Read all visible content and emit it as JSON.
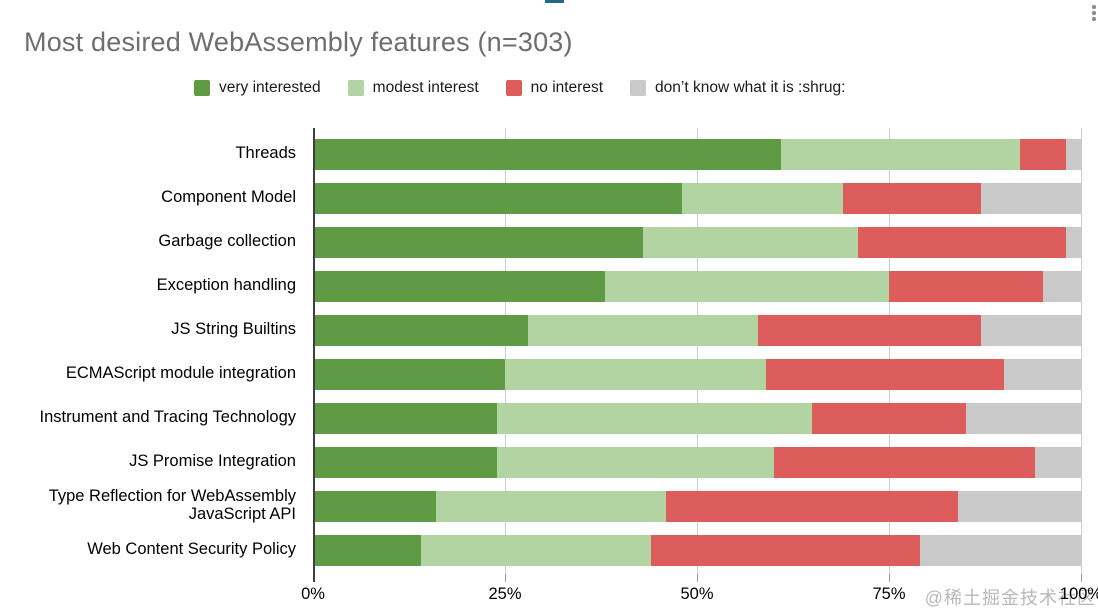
{
  "window": {
    "watermark": "@稀土掘金技术社区",
    "menu_icon": "kebab-vertical-dots"
  },
  "chart_data": {
    "type": "bar",
    "orientation": "horizontal",
    "stacked": true,
    "units": "percent",
    "title": "Most desired WebAssembly features (n=303)",
    "legend_position": "top",
    "grid": true,
    "x_axis": {
      "range": [
        0,
        100
      ],
      "tick_values": [
        0,
        25,
        50,
        75,
        100
      ],
      "tick_labels": [
        "0%",
        "25%",
        "50%",
        "75%",
        "100%"
      ]
    },
    "categories": [
      "Threads",
      "Component Model",
      "Garbage collection",
      "Exception handling",
      "JS String Builtins",
      "ECMAScript module integration",
      "Instrument and Tracing Technology",
      "JS Promise Integration",
      "Type Reflection for WebAssembly JavaScript API",
      "Web Content Security Policy"
    ],
    "series": [
      {
        "name": "very interested",
        "color": "#5e9b44",
        "values": [
          61,
          48,
          43,
          38,
          28,
          25,
          24,
          24,
          16,
          14
        ]
      },
      {
        "name": "modest interest",
        "color": "#b2d3a2",
        "values": [
          31,
          21,
          28,
          37,
          30,
          34,
          41,
          36,
          30,
          30
        ]
      },
      {
        "name": "no interest",
        "color": "#dd5c5c",
        "values": [
          6,
          18,
          27,
          20,
          29,
          31,
          20,
          34,
          38,
          35
        ]
      },
      {
        "name": "don’t know what it is :shrug:",
        "color": "#c9c9c9",
        "values": [
          2,
          13,
          2,
          5,
          13,
          10,
          15,
          6,
          16,
          21
        ]
      }
    ]
  }
}
